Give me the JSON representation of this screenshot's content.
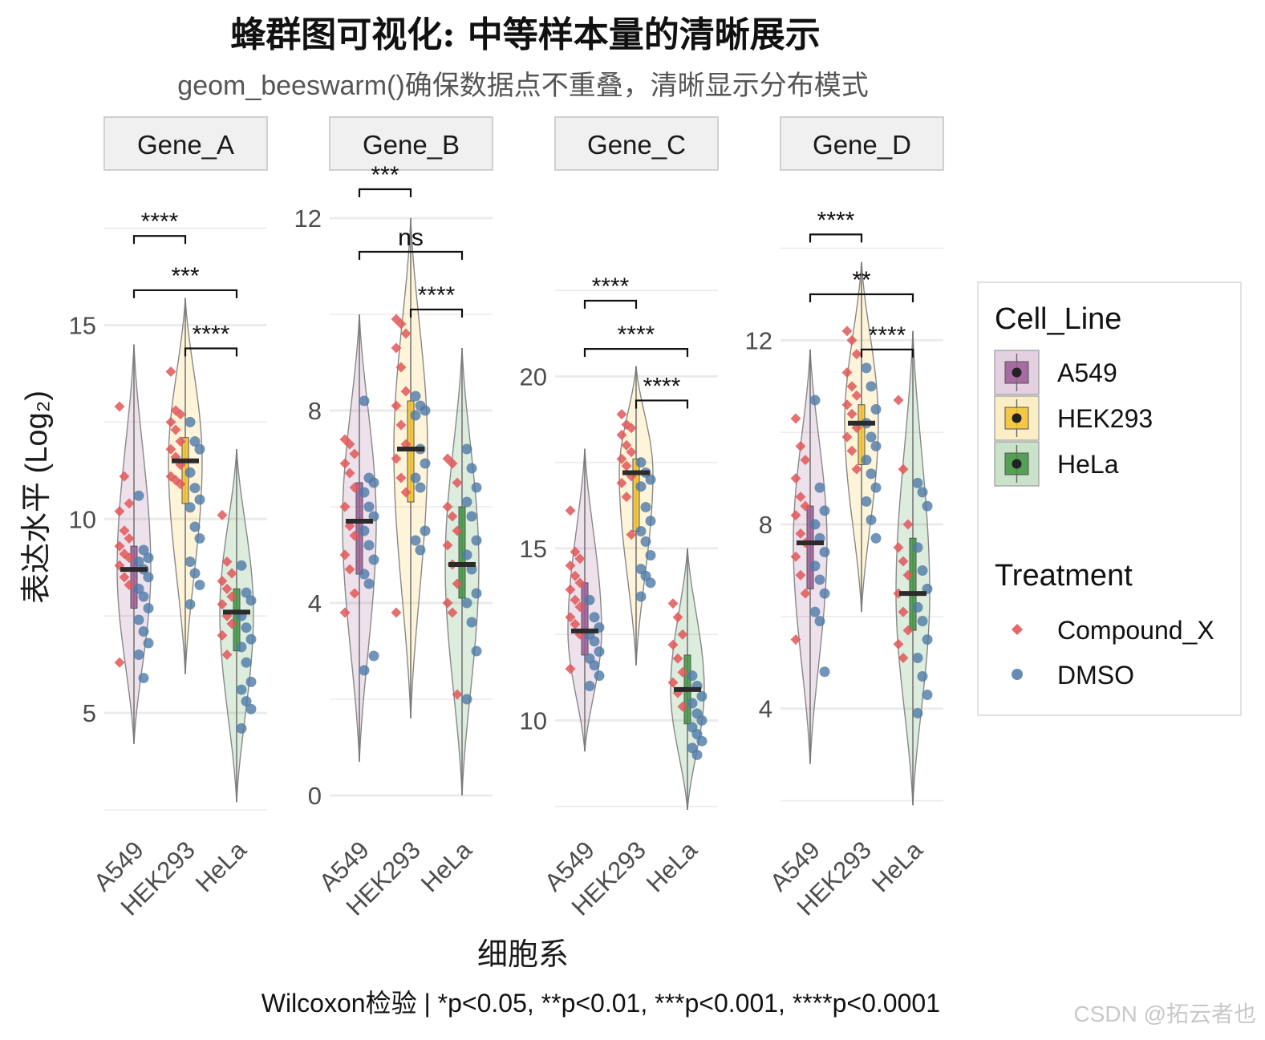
{
  "colors": {
    "A549": "#9b5b95",
    "HEK293": "#f2c12e",
    "HeLa": "#3f9441",
    "Compound_X": "#e15759",
    "DMSO": "#4e79a7",
    "grid": "#ebebeb",
    "strip_bg": "#f0f0f0"
  },
  "chart_data": {
    "type": "violin+box+beeswarm",
    "title": "蜂群图可视化: 中等样本量的清晰展示",
    "subtitle": "geom_beeswarm()确保数据点不重叠，清晰显示分布模式",
    "xlabel": "细胞系",
    "ylabel": "表达水平 (Log₂)",
    "caption": "Wilcoxon检验 | *p<0.05, **p<0.01, ***p<0.001, ****p<0.0001",
    "categories": [
      "A549",
      "HEK293",
      "HeLa"
    ],
    "legend": {
      "fill_title": "Cell_Line",
      "fill_items": [
        "A549",
        "HEK293",
        "HeLa"
      ],
      "shape_title": "Treatment",
      "shape_items": [
        "Compound_X",
        "DMSO"
      ]
    },
    "panels": [
      {
        "gene": "Gene_A",
        "ylim": [
          2.5,
          19.0
        ],
        "yticks": [
          5,
          10,
          15
        ],
        "groups": [
          {
            "cell": "A549",
            "median": 8.7,
            "q1": 7.7,
            "q3": 9.3,
            "min": 4.2,
            "max": 14.5,
            "compound": [
              12.9,
              11.1,
              10.4,
              10.2,
              9.7,
              9.5,
              9.3,
              9.1,
              9.0,
              8.8,
              8.5,
              8.3,
              6.3
            ],
            "dmso": [
              10.6,
              9.2,
              9.0,
              8.9,
              8.7,
              8.5,
              8.2,
              8.0,
              7.7,
              7.4,
              7.1,
              6.8,
              6.5,
              5.9
            ]
          },
          {
            "cell": "HEK293",
            "median": 11.5,
            "q1": 10.4,
            "q3": 12.1,
            "min": 6.0,
            "max": 15.7,
            "compound": [
              13.8,
              12.8,
              12.7,
              12.5,
              12.3,
              12.0,
              11.8,
              11.6,
              11.4,
              11.1,
              11.0,
              10.9
            ],
            "dmso": [
              12.5,
              12.0,
              11.8,
              11.2,
              10.8,
              10.5,
              10.3,
              9.8,
              9.5,
              8.9,
              8.6,
              8.3,
              7.8
            ]
          },
          {
            "cell": "HeLa",
            "median": 7.6,
            "q1": 6.6,
            "q3": 8.2,
            "min": 2.7,
            "max": 11.8,
            "compound": [
              10.1,
              8.9,
              8.6,
              8.4,
              8.2,
              8.0,
              7.8,
              7.5,
              7.3,
              7.0,
              6.5
            ],
            "dmso": [
              8.8,
              8.1,
              7.9,
              7.5,
              7.2,
              6.9,
              6.7,
              6.3,
              5.8,
              5.6,
              5.3,
              5.1,
              4.6
            ]
          }
        ],
        "comparisons": [
          {
            "from": 0,
            "to": 1,
            "label": "****",
            "y": 17.3
          },
          {
            "from": 0,
            "to": 2,
            "label": "***",
            "y": 15.9
          },
          {
            "from": 1,
            "to": 2,
            "label": "****",
            "y": 14.4
          }
        ]
      },
      {
        "gene": "Gene_B",
        "ylim": [
          -0.3,
          13.0
        ],
        "yticks": [
          0,
          4,
          8,
          12
        ],
        "groups": [
          {
            "cell": "A549",
            "median": 5.7,
            "q1": 4.6,
            "q3": 6.5,
            "min": 0.7,
            "max": 10.0,
            "compound": [
              7.4,
              7.3,
              7.1,
              6.9,
              6.7,
              6.4,
              6.0,
              5.6,
              5.4,
              5.0,
              4.7,
              4.2,
              3.8
            ],
            "dmso": [
              8.2,
              6.6,
              6.5,
              6.3,
              6.0,
              5.8,
              5.5,
              5.2,
              4.9,
              4.6,
              4.4,
              2.9,
              2.6
            ]
          },
          {
            "cell": "HEK293",
            "median": 7.2,
            "q1": 6.1,
            "q3": 8.2,
            "min": 1.6,
            "max": 12.0,
            "compound": [
              9.9,
              9.8,
              9.6,
              9.3,
              8.9,
              8.4,
              8.1,
              7.7,
              7.3,
              7.0,
              6.6,
              6.3,
              3.8
            ],
            "dmso": [
              8.3,
              8.1,
              8.0,
              7.9,
              7.2,
              6.9,
              6.6,
              6.4,
              5.5,
              5.3,
              5.1
            ]
          },
          {
            "cell": "HeLa",
            "median": 4.8,
            "q1": 4.1,
            "q3": 6.0,
            "min": 0.0,
            "max": 9.3,
            "compound": [
              7.0,
              6.9,
              6.5,
              6.0,
              5.8,
              5.5,
              5.2,
              4.8,
              4.4,
              4.0,
              3.8,
              2.1
            ],
            "dmso": [
              7.2,
              6.8,
              6.4,
              6.1,
              5.8,
              5.3,
              5.0,
              4.7,
              4.2,
              4.0,
              3.6,
              3.0,
              2.0
            ]
          }
        ],
        "comparisons": [
          {
            "from": 0,
            "to": 1,
            "label": "***",
            "y": 12.6
          },
          {
            "from": 0,
            "to": 2,
            "label": "ns",
            "y": 11.3
          },
          {
            "from": 1,
            "to": 2,
            "label": "****",
            "y": 10.1
          }
        ]
      },
      {
        "gene": "Gene_C",
        "ylim": [
          7.4,
          26.0
        ],
        "yticks": [
          10,
          15,
          20
        ],
        "groups": [
          {
            "cell": "A549",
            "median": 12.6,
            "q1": 11.9,
            "q3": 14.0,
            "min": 9.1,
            "max": 17.9,
            "compound": [
              16.1,
              14.9,
              14.7,
              14.5,
              14.2,
              14.0,
              13.8,
              13.5,
              13.3,
              13.0,
              12.8,
              12.5,
              11.5
            ],
            "dmso": [
              13.5,
              13.0,
              12.7,
              12.5,
              12.3,
              12.0,
              11.8,
              11.6,
              11.3,
              11.0
            ]
          },
          {
            "cell": "HEK293",
            "median": 17.2,
            "q1": 15.5,
            "q3": 17.6,
            "min": 11.6,
            "max": 20.3,
            "compound": [
              18.9,
              18.6,
              18.5,
              18.3,
              18.0,
              17.8,
              17.6,
              17.4,
              17.1,
              16.9,
              16.5,
              15.4
            ],
            "dmso": [
              17.5,
              17.2,
              17.0,
              16.8,
              16.2,
              15.8,
              15.5,
              15.2,
              14.8,
              14.4,
              14.2,
              14.0,
              13.6
            ]
          },
          {
            "cell": "HeLa",
            "median": 10.9,
            "q1": 9.9,
            "q3": 11.9,
            "min": 7.4,
            "max": 15.0,
            "compound": [
              13.4,
              13.0,
              12.5,
              12.2,
              11.8,
              11.4,
              11.1,
              10.8,
              10.4
            ],
            "dmso": [
              11.3,
              11.0,
              10.7,
              10.5,
              10.2,
              10.0,
              9.8,
              9.6,
              9.4,
              9.2,
              9.0
            ]
          }
        ],
        "comparisons": [
          {
            "from": 0,
            "to": 1,
            "label": "****",
            "y": 22.2
          },
          {
            "from": 0,
            "to": 2,
            "label": "****",
            "y": 20.8
          },
          {
            "from": 1,
            "to": 2,
            "label": "****",
            "y": 19.3
          }
        ]
      },
      {
        "gene": "Gene_D",
        "ylim": [
          1.8,
          15.7
        ],
        "yticks": [
          4,
          8,
          12
        ],
        "groups": [
          {
            "cell": "A549",
            "median": 7.6,
            "q1": 6.6,
            "q3": 8.4,
            "min": 2.8,
            "max": 11.8,
            "compound": [
              10.3,
              9.7,
              9.4,
              9.0,
              8.6,
              8.4,
              8.2,
              7.8,
              7.6,
              7.3,
              6.9,
              6.5,
              5.5
            ],
            "dmso": [
              10.7,
              8.8,
              8.3,
              8.0,
              7.7,
              7.4,
              7.1,
              6.8,
              6.5,
              6.1,
              5.9,
              4.8
            ]
          },
          {
            "cell": "HEK293",
            "median": 10.2,
            "q1": 9.3,
            "q3": 10.6,
            "min": 6.1,
            "max": 13.7,
            "compound": [
              12.2,
              12.0,
              11.7,
              11.3,
              11.0,
              10.8,
              10.6,
              10.4,
              10.1,
              9.9,
              9.6,
              9.2
            ],
            "dmso": [
              11.4,
              11.0,
              10.5,
              10.2,
              9.9,
              9.7,
              9.4,
              9.1,
              8.8,
              8.5,
              8.1,
              7.7
            ]
          },
          {
            "cell": "HeLa",
            "median": 6.5,
            "q1": 5.7,
            "q3": 7.7,
            "min": 1.9,
            "max": 12.2,
            "compound": [
              10.7,
              9.2,
              8.0,
              7.5,
              7.2,
              6.9,
              6.5,
              6.1,
              5.7,
              5.4,
              5.1
            ],
            "dmso": [
              8.9,
              8.7,
              8.4,
              7.5,
              7.0,
              6.6,
              6.2,
              5.9,
              5.5,
              5.1,
              4.7,
              4.3,
              3.9
            ]
          }
        ],
        "comparisons": [
          {
            "from": 0,
            "to": 1,
            "label": "****",
            "y": 14.3
          },
          {
            "from": 0,
            "to": 2,
            "label": "**",
            "y": 13.0
          },
          {
            "from": 1,
            "to": 2,
            "label": "****",
            "y": 11.8
          }
        ]
      }
    ]
  },
  "watermark": "CSDN @拓云者也"
}
